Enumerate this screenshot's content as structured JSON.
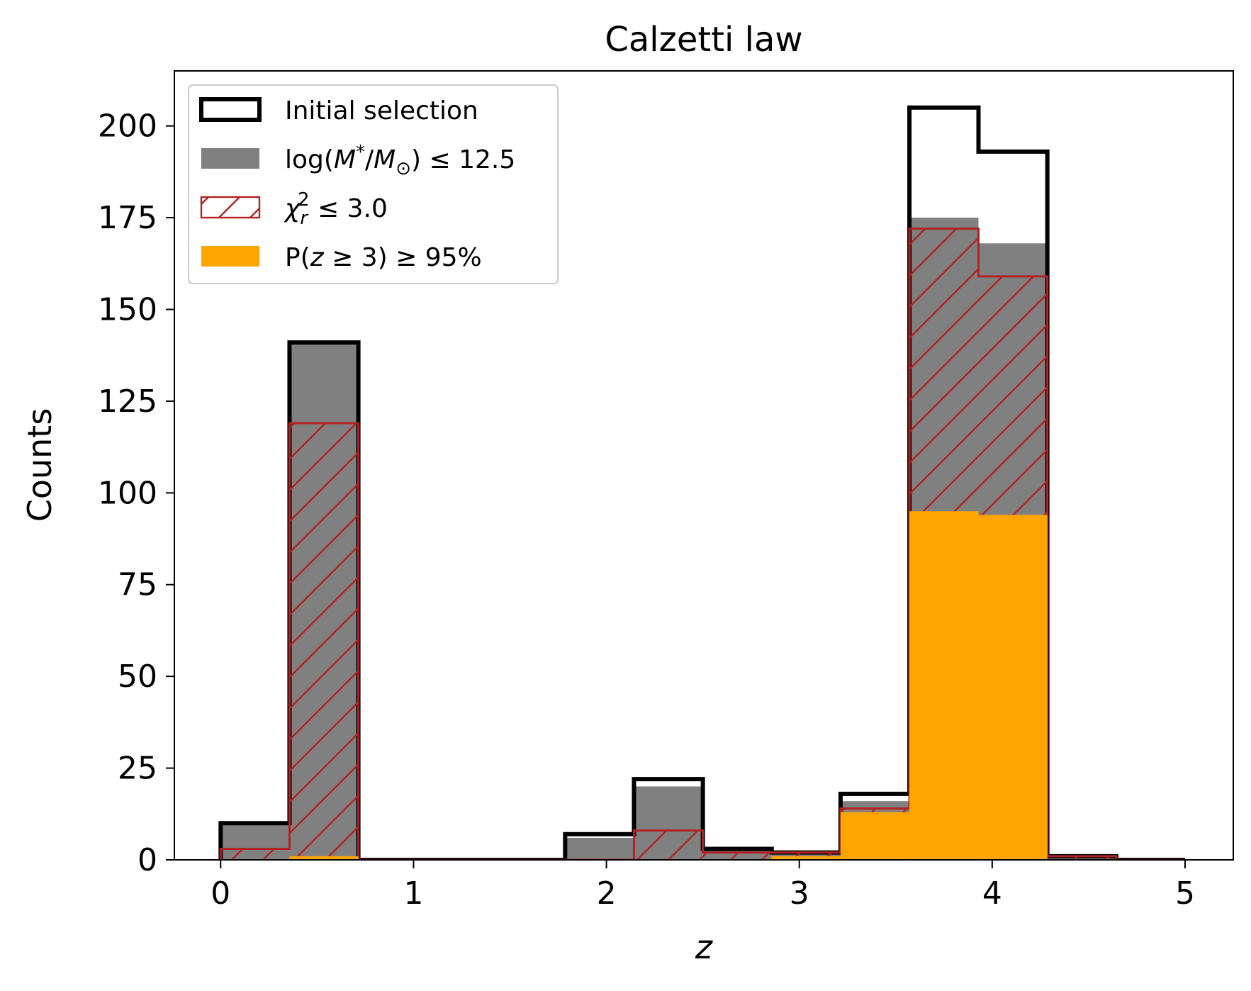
{
  "chart_data": {
    "type": "bar",
    "title": "Calzetti law",
    "xlabel": "z",
    "ylabel": "Counts",
    "xlim": [
      -0.24,
      5.25
    ],
    "ylim": [
      0,
      215
    ],
    "xticks": [
      0,
      1,
      2,
      3,
      4,
      5
    ],
    "yticks": [
      0,
      25,
      50,
      75,
      100,
      125,
      150,
      175,
      200
    ],
    "bin_edges": [
      0,
      0.357,
      0.714,
      1.071,
      1.429,
      1.786,
      2.143,
      2.5,
      2.857,
      3.214,
      3.571,
      3.929,
      4.286,
      4.643,
      5.0
    ],
    "grid": false,
    "legend_position": "top-left",
    "series": [
      {
        "name": "Initial selection",
        "style": "step-outline",
        "color": "#000000",
        "values": [
          10,
          141,
          0,
          0,
          0,
          7,
          22,
          3,
          2,
          18,
          205,
          193,
          1,
          0
        ]
      },
      {
        "name": "log(M*/M⊙) ≤ 12.5",
        "style": "filled",
        "color": "#808080",
        "values": [
          10,
          141,
          0,
          0,
          0,
          6,
          20,
          3,
          2,
          16,
          175,
          168,
          1,
          0
        ]
      },
      {
        "name": "χr² ≤ 3.0",
        "style": "hatched-outline",
        "color": "#b22222",
        "values": [
          3,
          119,
          0,
          0,
          0,
          0,
          8,
          2,
          2,
          14,
          172,
          159,
          1,
          0
        ]
      },
      {
        "name": "P(z ≥ 3) ≥ 95%",
        "style": "filled",
        "color": "#ffa500",
        "values": [
          0,
          1,
          0,
          0,
          0,
          0,
          0,
          0,
          1,
          13,
          95,
          94,
          0,
          0
        ]
      }
    ]
  },
  "legend": {
    "items": [
      {
        "key": "initial",
        "label": "Initial selection"
      },
      {
        "key": "mass",
        "label_main": "log(",
        "label_M": "M",
        "label_sup": "*",
        "label_slash": "/",
        "label_Msun": "M",
        "label_sun_sub": "⊙",
        "label_tail": ") ≤ 12.5"
      },
      {
        "key": "chi",
        "label_chi": "χ",
        "label_sub": "r",
        "label_sup": "2",
        "label_tail": " ≤ 3.0"
      },
      {
        "key": "pz",
        "label_head": "P(",
        "label_z": "z",
        "label_tail": " ≥ 3) ≥ 95%"
      }
    ]
  },
  "colors": {
    "outline": "#000000",
    "mass_fill": "#808080",
    "chi_hatch": "#b22222",
    "pz_fill": "#ffa500"
  }
}
